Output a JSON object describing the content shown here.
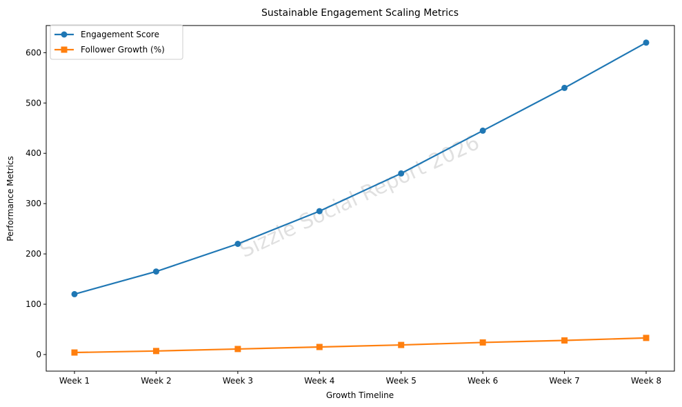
{
  "chart_data": {
    "type": "line",
    "title": "Sustainable Engagement Scaling Metrics",
    "xlabel": "Growth Timeline",
    "ylabel": "Performance Metrics",
    "categories": [
      "Week 1",
      "Week 2",
      "Week 3",
      "Week 4",
      "Week 5",
      "Week 6",
      "Week 7",
      "Week 8"
    ],
    "ylim": [
      -33,
      654
    ],
    "yticks": [
      0,
      100,
      200,
      300,
      400,
      500,
      600
    ],
    "grid": false,
    "legend_position": "top-left",
    "watermark": "Sizzle Social Report 2026",
    "series": [
      {
        "name": "Engagement Score",
        "color": "#1f77b4",
        "marker": "circle",
        "values": [
          120,
          165,
          220,
          285,
          360,
          445,
          530,
          620
        ]
      },
      {
        "name": "Follower Growth (%)",
        "color": "#ff7f0e",
        "marker": "square",
        "values": [
          4,
          7,
          11,
          15,
          19,
          24,
          28,
          33
        ]
      }
    ]
  }
}
